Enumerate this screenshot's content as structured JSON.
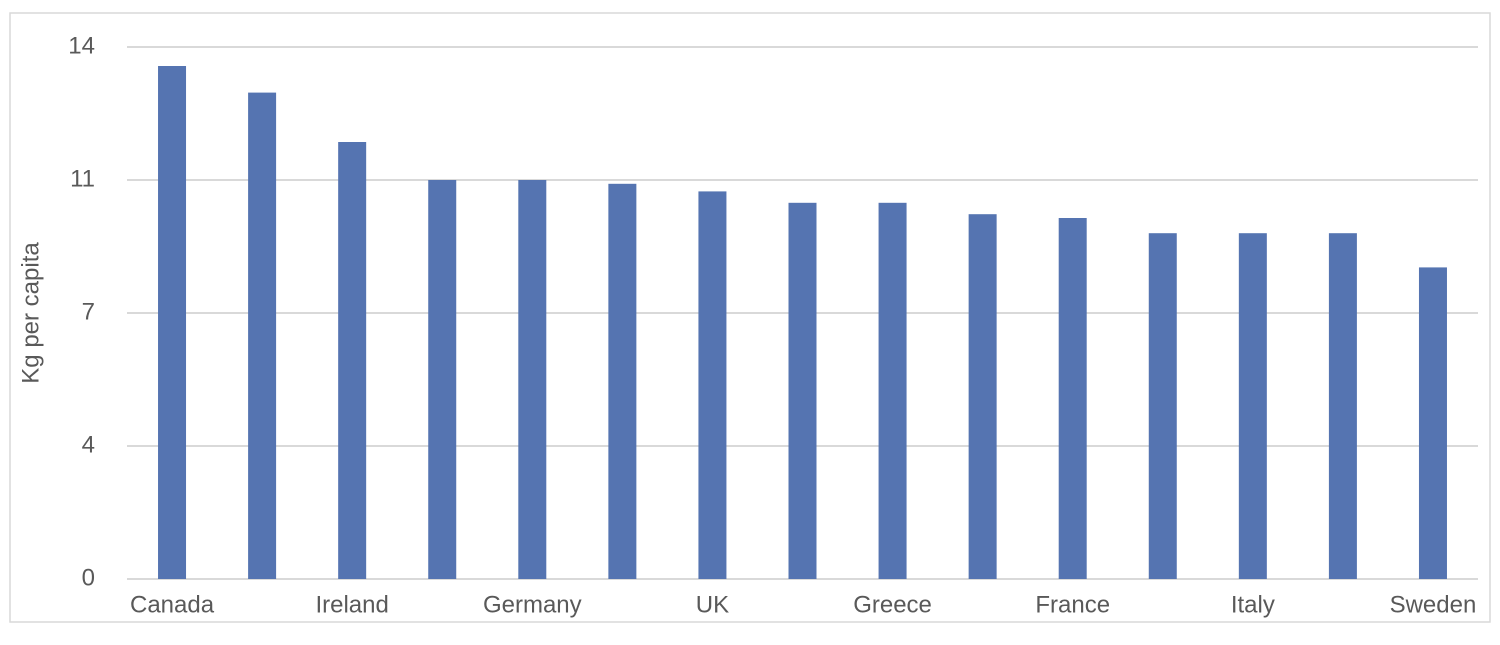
{
  "chart_data": {
    "type": "bar",
    "y_label": "Kg per capita",
    "categories": [
      "Canada",
      null,
      "Ireland",
      null,
      "Germany",
      null,
      "UK",
      null,
      "Greece",
      null,
      "France",
      null,
      "Italy",
      null,
      "Sweden"
    ],
    "values": [
      13.5,
      12.8,
      11.5,
      10.5,
      10.5,
      10.4,
      10.2,
      9.9,
      9.9,
      9.6,
      9.5,
      9.1,
      9.1,
      9.1,
      8.2
    ],
    "color": "#5574b1",
    "ylim": [
      0,
      14
    ],
    "yticks": [
      0,
      {
        "value": 3.5,
        "label": "4"
      },
      7,
      {
        "value": 10.5,
        "label": "11"
      },
      14
    ],
    "grid": true
  }
}
